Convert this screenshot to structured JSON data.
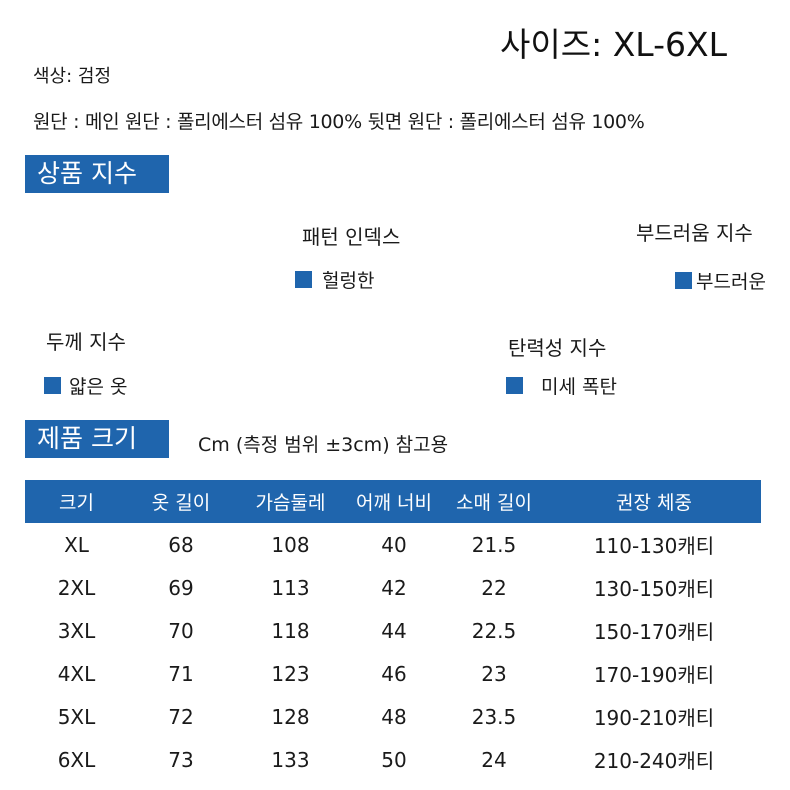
{
  "header": {
    "size_range": "사이즈: XL-6XL",
    "color": "색상: 검정",
    "fabric": "원단 : 메인 원단 : 폴리에스터 섬유 100% 뒷면 원단 : 폴리에스터 섬유 100%"
  },
  "product_index": {
    "title": "상품 지수",
    "pattern": {
      "label": "패턴 인덱스",
      "value": "헐렁한"
    },
    "softness": {
      "label": "부드러움 지수",
      "value": "부드러운"
    },
    "thickness": {
      "label": "두께 지수",
      "value": "얇은 옷"
    },
    "elasticity": {
      "label": "탄력성 지수",
      "value": "미세 폭탄"
    }
  },
  "product_size": {
    "title": "제품 크기",
    "note": "Cm (측정 범위 ±3cm) 참고용",
    "columns": [
      "크기",
      "옷 길이",
      "가슴둘레",
      "어깨 너비",
      "소매 길이",
      "권장 체중"
    ],
    "rows": [
      [
        "XL",
        "68",
        "108",
        "40",
        "21.5",
        "110-130캐티"
      ],
      [
        "2XL",
        "69",
        "113",
        "42",
        "22",
        "130-150캐티"
      ],
      [
        "3XL",
        "70",
        "118",
        "44",
        "22.5",
        "150-170캐티"
      ],
      [
        "4XL",
        "71",
        "123",
        "46",
        "23",
        "170-190캐티"
      ],
      [
        "5XL",
        "72",
        "128",
        "48",
        "23.5",
        "190-210캐티"
      ],
      [
        "6XL",
        "73",
        "133",
        "50",
        "24",
        "210-240캐티"
      ]
    ]
  },
  "colors": {
    "accent": "#1f65ad"
  }
}
